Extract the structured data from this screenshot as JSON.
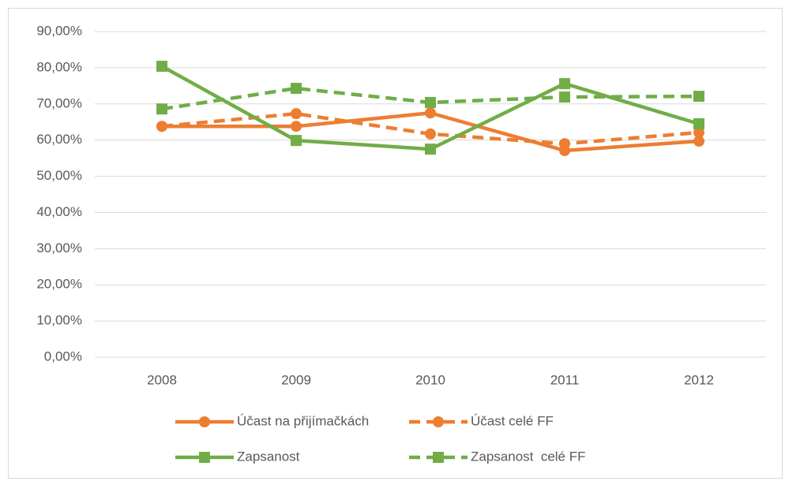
{
  "chart_data": {
    "type": "line",
    "categories": [
      "2008",
      "2009",
      "2010",
      "2011",
      "2012"
    ],
    "ylim": [
      0,
      90
    ],
    "yticks": [
      {
        "value": 0,
        "label": "0,00%"
      },
      {
        "value": 10,
        "label": "10,00%"
      },
      {
        "value": 20,
        "label": "20,00%"
      },
      {
        "value": 30,
        "label": "30,00%"
      },
      {
        "value": 40,
        "label": "40,00%"
      },
      {
        "value": 50,
        "label": "50,00%"
      },
      {
        "value": 60,
        "label": "60,00%"
      },
      {
        "value": 70,
        "label": "70,00%"
      },
      {
        "value": 80,
        "label": "80,00%"
      },
      {
        "value": 90,
        "label": "90,00%"
      }
    ],
    "grid": true,
    "legend": "bottom",
    "series": [
      {
        "name": "Účast na přijímačkách",
        "color": "#ed7d31",
        "dashed": false,
        "marker": "circle",
        "values": [
          63.8,
          63.8,
          67.5,
          57.1,
          59.7
        ]
      },
      {
        "name": "Účast celé FF",
        "color": "#ed7d31",
        "dashed": true,
        "marker": "circle",
        "values": [
          63.8,
          67.3,
          61.7,
          59.0,
          62.1
        ]
      },
      {
        "name": "Zapsanost",
        "color": "#70ad47",
        "dashed": false,
        "marker": "square",
        "values": [
          80.4,
          59.9,
          57.5,
          75.6,
          64.5
        ]
      },
      {
        "name": "Zapsanost  celé FF",
        "color": "#70ad47",
        "dashed": true,
        "marker": "square",
        "values": [
          68.6,
          74.3,
          70.4,
          71.9,
          72.1
        ]
      }
    ]
  }
}
